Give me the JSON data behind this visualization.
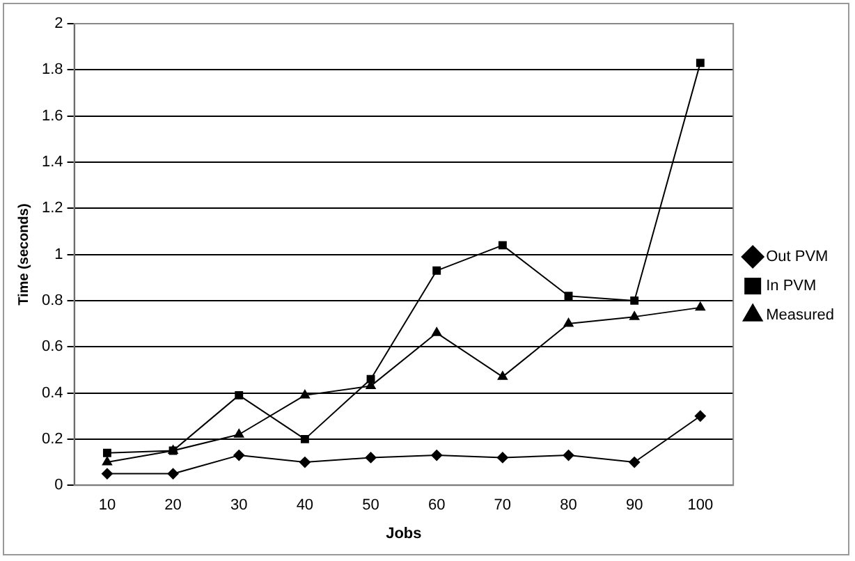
{
  "chart_data": {
    "type": "line",
    "xlabel": "Jobs",
    "ylabel": "Time (seconds)",
    "categories": [
      "10",
      "20",
      "30",
      "40",
      "50",
      "60",
      "70",
      "80",
      "90",
      "100"
    ],
    "series": [
      {
        "name": "Out PVM",
        "color": "#000000",
        "marker": "diamond",
        "values": [
          0.05,
          0.05,
          0.13,
          0.1,
          0.12,
          0.13,
          0.12,
          0.13,
          0.1,
          0.3
        ]
      },
      {
        "name": "In PVM",
        "color": "#000000",
        "marker": "square",
        "values": [
          0.14,
          0.15,
          0.39,
          0.2,
          0.46,
          0.93,
          1.04,
          0.82,
          0.8,
          1.83
        ]
      },
      {
        "name": "Measured",
        "color": "#000000",
        "marker": "triangle",
        "values": [
          0.1,
          0.15,
          0.22,
          0.39,
          0.43,
          0.66,
          0.47,
          0.7,
          0.73,
          0.77
        ]
      }
    ],
    "ylim": [
      0,
      2
    ],
    "yticks": [
      0,
      0.2,
      0.4,
      0.6,
      0.8,
      1,
      1.2,
      1.4,
      1.6,
      1.8,
      2
    ],
    "grid": "y",
    "legend": "right",
    "line_style": "solid"
  }
}
